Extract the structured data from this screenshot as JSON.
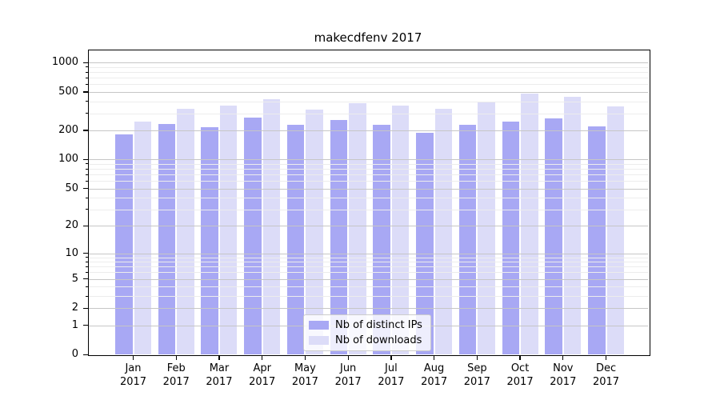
{
  "title": "makecdfenv 2017",
  "legend": {
    "items": [
      {
        "label": "Nb of distinct IPs",
        "color": "#a8a8f4"
      },
      {
        "label": "Nb of downloads",
        "color": "#dcdcf8"
      }
    ]
  },
  "chart_data": {
    "type": "bar",
    "title": "makecdfenv 2017",
    "categories": [
      "Jan",
      "Feb",
      "Mar",
      "Apr",
      "May",
      "Jun",
      "Jul",
      "Aug",
      "Sep",
      "Oct",
      "Nov",
      "Dec"
    ],
    "year": "2017",
    "series": [
      {
        "name": "Nb of distinct IPs",
        "color": "#a8a8f4",
        "values": [
          183,
          232,
          215,
          270,
          229,
          258,
          229,
          190,
          230,
          248,
          265,
          222
        ]
      },
      {
        "name": "Nb of downloads",
        "color": "#dcdcf8",
        "values": [
          246,
          335,
          363,
          418,
          328,
          382,
          363,
          336,
          399,
          483,
          447,
          352
        ]
      }
    ],
    "y_scale": "log10(1+x)",
    "y_ticks_major": [
      0,
      1,
      2,
      5,
      10,
      20,
      50,
      100,
      200,
      500,
      1000
    ],
    "y_ticks_minor": [
      3,
      4,
      6,
      7,
      8,
      9,
      30,
      40,
      60,
      70,
      80,
      90,
      300,
      400,
      600,
      700,
      800,
      900
    ],
    "ylim": [
      0,
      1370
    ],
    "grid": "horizontal",
    "legend_position": "bottom-center",
    "xlabel": "",
    "ylabel": ""
  },
  "colors": {
    "grid_major": "#c6c6c6",
    "grid_minor": "#ececec",
    "axis": "#000000",
    "background": "#ffffff"
  }
}
